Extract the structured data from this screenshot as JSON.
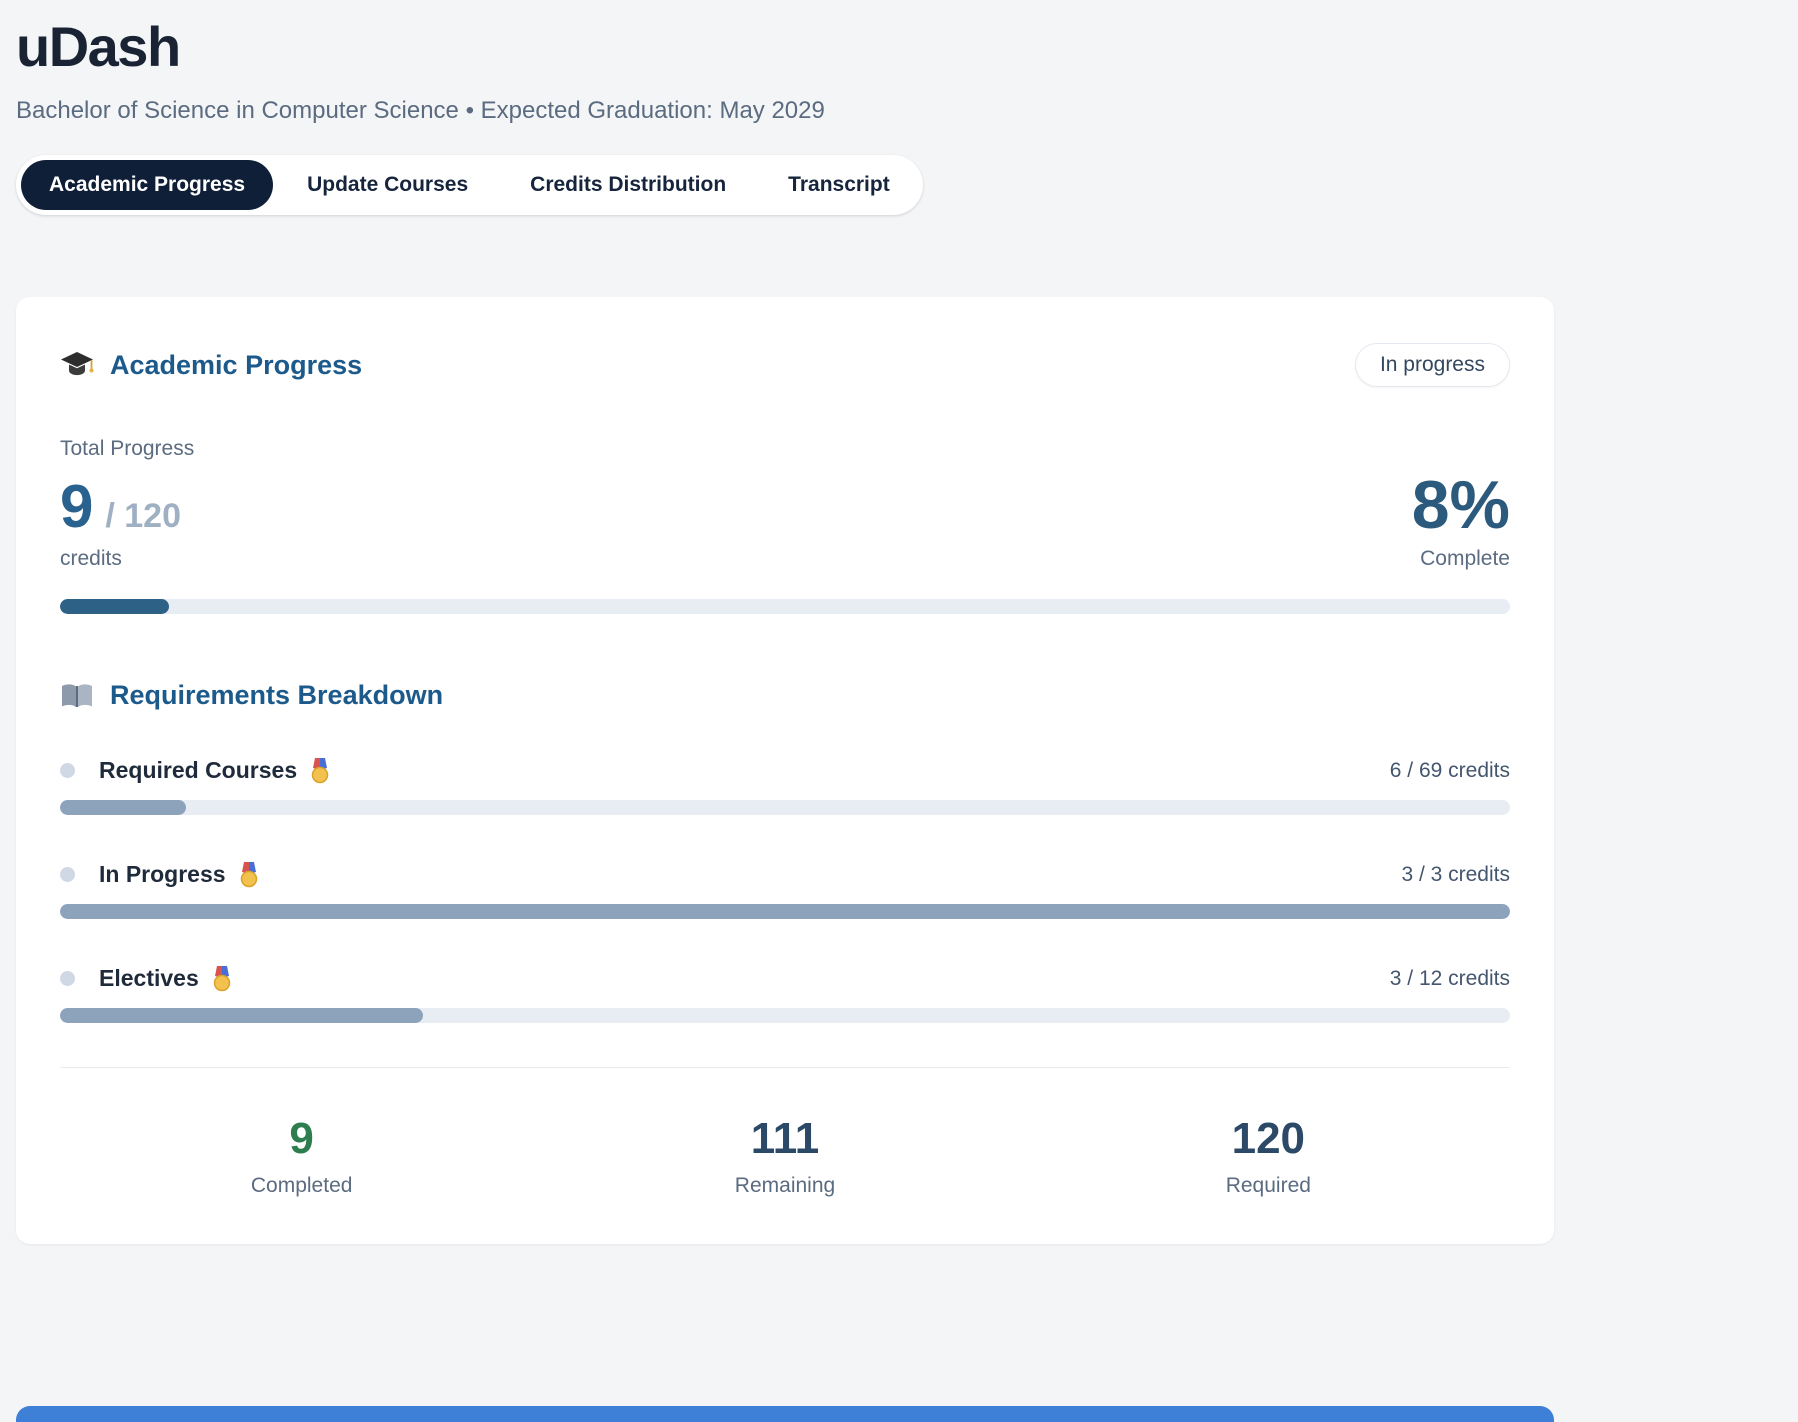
{
  "header": {
    "app_title": "uDash",
    "subtitle": "Bachelor of Science in Computer Science • Expected Graduation: May 2029"
  },
  "tabs": {
    "items": [
      {
        "label": "Academic Progress",
        "active": true
      },
      {
        "label": "Update Courses",
        "active": false
      },
      {
        "label": "Credits Distribution",
        "active": false
      },
      {
        "label": "Transcript",
        "active": false
      }
    ]
  },
  "progress_card": {
    "heading": "Academic Progress",
    "heading_icon": "graduation-cap-icon",
    "badge": "In progress",
    "total_progress": {
      "label": "Total Progress",
      "value": "9",
      "total": "/ 120",
      "unit": "credits",
      "percent_text": "8%",
      "percent_caption": "Complete",
      "percent_value": 7.5
    },
    "requirements": {
      "heading": "Requirements Breakdown",
      "heading_icon": "open-book-icon",
      "items": [
        {
          "label": "Required Courses",
          "icon": "medal-icon",
          "credits": "6 / 69 credits",
          "percent": 8.7
        },
        {
          "label": "In Progress",
          "icon": "medal-icon",
          "credits": "3 / 3 credits",
          "percent": 100
        },
        {
          "label": "Electives",
          "icon": "medal-icon",
          "credits": "3 / 12 credits",
          "percent": 25
        }
      ]
    },
    "summary": [
      {
        "value": "9",
        "label": "Completed",
        "color": "#2e7d4f"
      },
      {
        "value": "111",
        "label": "Remaining",
        "color": "#2c4a68"
      },
      {
        "value": "120",
        "label": "Required",
        "color": "#2c4a68"
      }
    ],
    "colors": {
      "progress_fill": "#2e6186",
      "requirement_fill": "#8da3bc",
      "accent_heading": "#1d5a8c",
      "active_tab": "#101f38",
      "next_section": "#3e7fd8"
    }
  }
}
